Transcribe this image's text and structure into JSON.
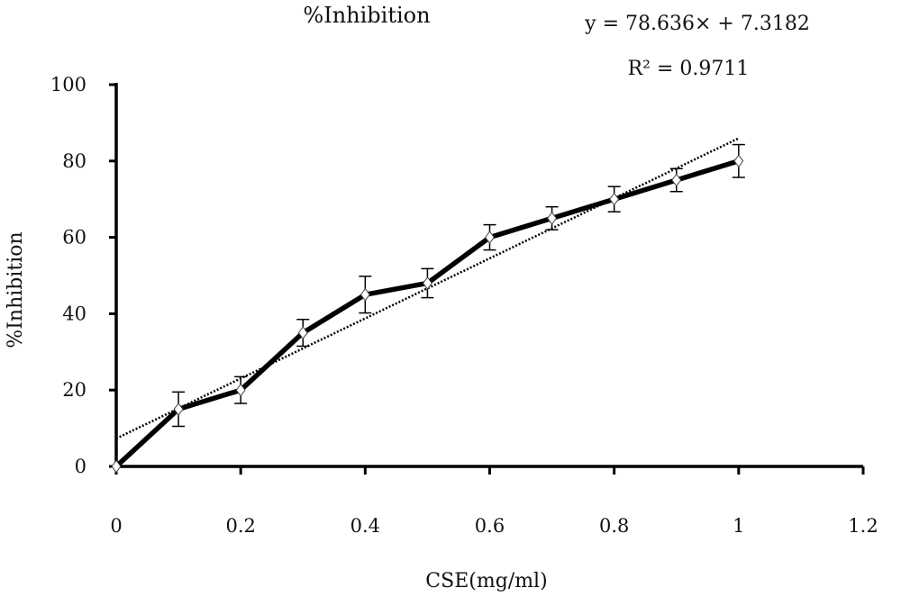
{
  "chart_data": {
    "type": "line",
    "title": "%Inhibition",
    "xlabel": "CSE(mg/ml)",
    "ylabel": "%Inhibition",
    "xlim": [
      0,
      1.2
    ],
    "ylim": [
      0,
      100
    ],
    "x_ticks": [
      "0",
      "0.2",
      "0.4",
      "0.6",
      "0.8",
      "1",
      "1.2"
    ],
    "y_ticks": [
      "0",
      "20",
      "40",
      "60",
      "80",
      "100"
    ],
    "grid": false,
    "series": [
      {
        "x": [
          0,
          0.1,
          0.2,
          0.3,
          0.4,
          0.5,
          0.6,
          0.7,
          0.8,
          0.9,
          1.0
        ],
        "y": [
          0,
          15,
          20,
          35,
          45,
          48,
          60,
          65,
          70,
          75,
          80
        ],
        "error": [
          0,
          4.5,
          3.5,
          3.5,
          4.8,
          3.8,
          3.3,
          3,
          3.3,
          3,
          4.3
        ],
        "color": "#000000",
        "marker": "diamond"
      }
    ],
    "trendline": {
      "type": "linear",
      "slope": 78.636,
      "intercept": 7.3182,
      "x_range": [
        0,
        1.0
      ],
      "style": "dotted",
      "color": "#000000"
    },
    "annotations": {
      "equation": "y = 78.636× + 7.3182",
      "r_squared": "R² = 0.9711"
    }
  }
}
